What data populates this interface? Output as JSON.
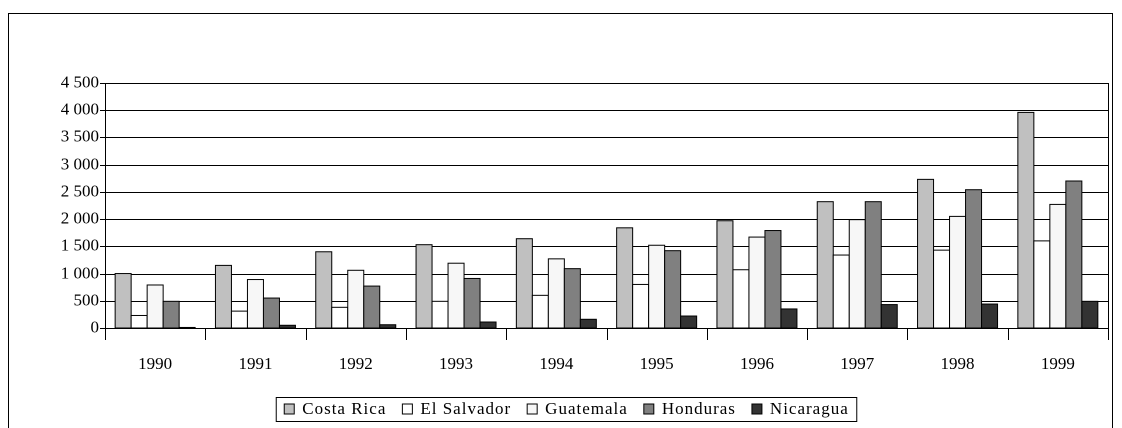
{
  "chart_data": {
    "type": "bar",
    "categories": [
      "1990",
      "1991",
      "1992",
      "1993",
      "1994",
      "1995",
      "1996",
      "1997",
      "1998",
      "1999"
    ],
    "series": [
      {
        "name": "Costa Rica",
        "color": "#c0c0c0",
        "values": [
          1000,
          1150,
          1400,
          1530,
          1640,
          1840,
          1970,
          2320,
          2730,
          3960
        ]
      },
      {
        "name": "El Salvador",
        "color": "#ffffff",
        "values": [
          230,
          310,
          380,
          490,
          600,
          800,
          1070,
          1340,
          1430,
          1600
        ]
      },
      {
        "name": "Guatemala",
        "color": "#f7f7f7",
        "values": [
          790,
          890,
          1060,
          1190,
          1270,
          1520,
          1670,
          1990,
          2050,
          2270
        ]
      },
      {
        "name": "Honduras",
        "color": "#808080",
        "values": [
          490,
          550,
          770,
          910,
          1090,
          1420,
          1790,
          2320,
          2540,
          2700
        ]
      },
      {
        "name": "Nicaragua",
        "color": "#333333",
        "values": [
          10,
          50,
          60,
          110,
          160,
          220,
          350,
          430,
          440,
          490
        ]
      }
    ],
    "ylim": [
      0,
      4500
    ],
    "yticks": [
      0,
      500,
      {
        "value": 1000,
        "label": "1 000"
      },
      {
        "value": 1500,
        "label": "1 500"
      },
      {
        "value": 2000,
        "label": "2 000"
      },
      {
        "value": 2500,
        "label": "2 500"
      },
      {
        "value": 3000,
        "label": "3 000"
      },
      {
        "value": 3500,
        "label": "3 500"
      },
      {
        "value": 4000,
        "label": "4 000"
      },
      {
        "value": 4500,
        "label": "4 500"
      }
    ],
    "grid": true,
    "legend": "bottom"
  }
}
